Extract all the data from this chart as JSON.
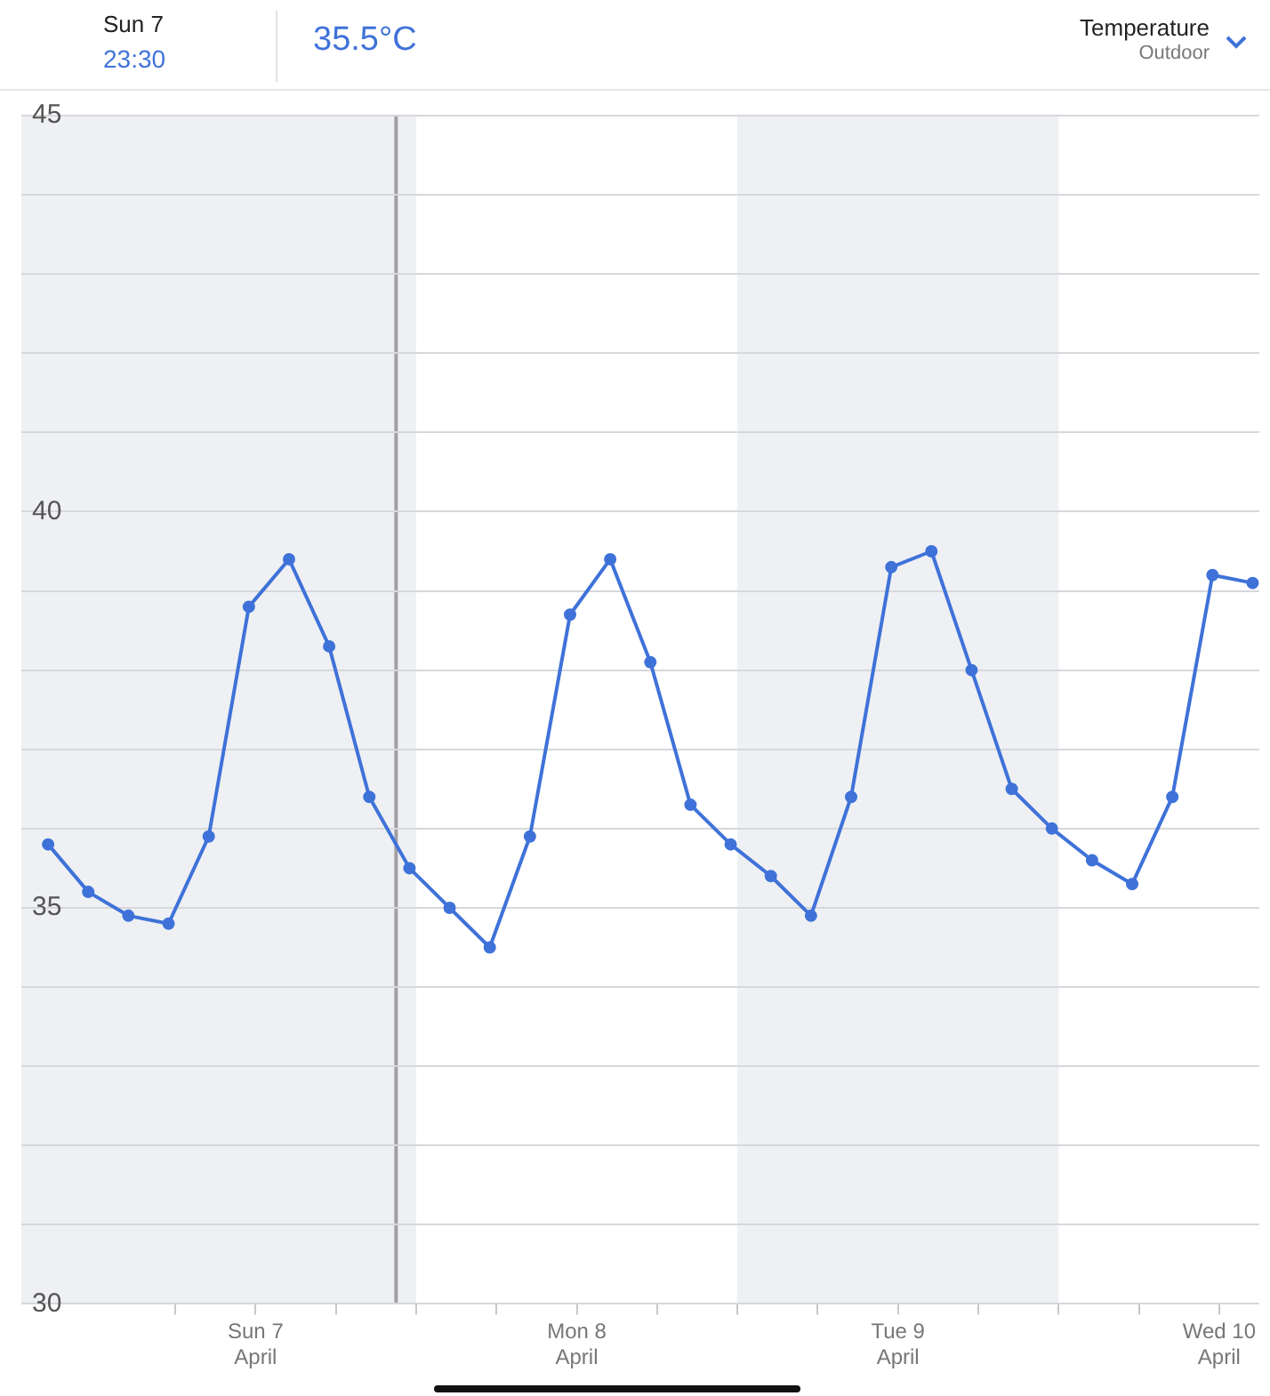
{
  "chart_data": {
    "type": "line",
    "title": "Temperature",
    "subtitle": "Outdoor",
    "annotations": [
      "Sun 7",
      "23:30",
      "35.5°C"
    ],
    "x": [
      "--04-06T20:30",
      "--04-06T23:30",
      "--04-07T02:30",
      "--04-07T05:30",
      "--04-07T08:30",
      "--04-07T11:30",
      "--04-07T14:30",
      "--04-07T17:30",
      "--04-07T20:30",
      "--04-07T23:30",
      "--04-08T02:30",
      "--04-08T05:30",
      "--04-08T08:30",
      "--04-08T11:30",
      "--04-08T14:30",
      "--04-08T17:30",
      "--04-08T20:30",
      "--04-08T23:30",
      "--04-09T02:30",
      "--04-09T05:30",
      "--04-09T08:30",
      "--04-09T11:30",
      "--04-09T14:30",
      "--04-09T17:30",
      "--04-09T20:30",
      "--04-09T23:30",
      "--04-10T02:30",
      "--04-10T05:30",
      "--04-10T08:30",
      "--04-10T11:30",
      "--04-10T14:30"
    ],
    "series": [
      {
        "color": "#3f72d9",
        "values": [
          35.8,
          35.2,
          34.9,
          34.8,
          35.9,
          38.8,
          39.4,
          38.3,
          36.4,
          35.5,
          35.0,
          34.5,
          35.9,
          38.7,
          39.4,
          38.1,
          36.3,
          35.8,
          35.4,
          34.9,
          36.4,
          39.3,
          39.5,
          38.0,
          36.5,
          36.0,
          35.6,
          35.3,
          36.4,
          39.2,
          39.1
        ]
      }
    ],
    "xlim": [
      "--04-06T18:30",
      "--04-10T15:00"
    ],
    "xticks": [
      {
        "value": "--04-07T06:00",
        "label": null
      },
      {
        "value": "--04-07T12:00",
        "label": "Sun 7\nApril"
      },
      {
        "value": "--04-07T18:00",
        "label": null
      },
      {
        "value": "--04-08T00:00",
        "label": null
      },
      {
        "value": "--04-08T06:00",
        "label": null
      },
      {
        "value": "--04-08T12:00",
        "label": "Mon 8\nApril"
      },
      {
        "value": "--04-08T18:00",
        "label": null
      },
      {
        "value": "--04-09T00:00",
        "label": null
      },
      {
        "value": "--04-09T06:00",
        "label": null
      },
      {
        "value": "--04-09T12:00",
        "label": "Tue 9\nApril"
      },
      {
        "value": "--04-09T18:00",
        "label": null
      },
      {
        "value": "--04-10T00:00",
        "label": null
      },
      {
        "value": "--04-10T06:00",
        "label": null
      },
      {
        "value": "--04-10T12:00",
        "label": "Wed 10\nApril"
      }
    ],
    "ylim": [
      30,
      45
    ],
    "yticks": [
      30,
      {
        "value": 31,
        "label": null
      },
      {
        "value": 32,
        "label": null
      },
      {
        "value": 33,
        "label": null
      },
      {
        "value": 34,
        "label": null
      },
      35,
      {
        "value": 36,
        "label": null
      },
      {
        "value": 37,
        "label": null
      },
      {
        "value": 38,
        "label": null
      },
      {
        "value": 39,
        "label": null
      },
      40,
      {
        "value": 41,
        "label": null
      },
      {
        "value": 42,
        "label": null
      },
      {
        "value": 43,
        "label": null
      },
      {
        "value": 44,
        "label": null
      },
      45
    ],
    "grid": "y",
    "legend": false,
    "marker": "circle",
    "line_style": "solid",
    "bands": [
      {
        "axis": "x",
        "from": "--04-06T18:30",
        "to": "--04-08T00:00",
        "color": "#eef0f3"
      },
      {
        "axis": "x",
        "from": "--04-09T00:00",
        "to": "--04-10T00:00",
        "color": "#eef0f3"
      }
    ],
    "ref_lines": [
      {
        "axis": "x",
        "value": "--04-07T22:30",
        "color": "#a0a0a0"
      }
    ]
  }
}
